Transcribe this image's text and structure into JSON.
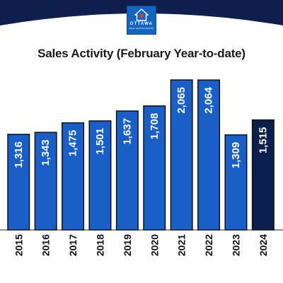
{
  "logo": {
    "brand": "OTTAWA",
    "sub": "REAL ESTATE BOARD",
    "icon": "maple-leaf-house-icon",
    "color": "#1565c0"
  },
  "colors": {
    "banner": "#0f1f4d",
    "bar": "#1a5fc8",
    "bar_highlight": "#0b1f4f",
    "bar_outline": "#111111"
  },
  "chart_data": {
    "type": "bar",
    "title": "Sales Activity (February Year-to-date)",
    "categories": [
      "2015",
      "2016",
      "2017",
      "2018",
      "2019",
      "2020",
      "2021",
      "2022",
      "2023",
      "2024"
    ],
    "values": [
      1316,
      1343,
      1475,
      1501,
      1637,
      1708,
      2065,
      2064,
      1309,
      1515
    ],
    "value_labels": [
      "1,316",
      "1,343",
      "1,475",
      "1,501",
      "1,637",
      "1,708",
      "2,065",
      "2,064",
      "1,309",
      "1,515"
    ],
    "highlight_index": 9,
    "ylim": [
      0,
      2065
    ],
    "grid": false,
    "legend": "none",
    "xlabel": "",
    "ylabel": ""
  }
}
